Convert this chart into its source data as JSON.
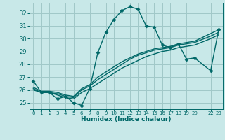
{
  "title": "",
  "xlabel": "Humidex (Indice chaleur)",
  "background_color": "#c8e8e8",
  "grid_color": "#a0c8c8",
  "line_color": "#006868",
  "ylim": [
    24.5,
    32.8
  ],
  "xlim": [
    -0.5,
    23.5
  ],
  "yticks": [
    25,
    26,
    27,
    28,
    29,
    30,
    31,
    32
  ],
  "xticks": [
    0,
    1,
    2,
    3,
    4,
    5,
    6,
    7,
    8,
    9,
    10,
    11,
    12,
    13,
    14,
    15,
    16,
    17,
    18,
    19,
    20,
    22,
    23
  ],
  "xtick_labels": [
    "0",
    "1",
    "2",
    "3",
    "4",
    "5",
    "6",
    "7",
    "8",
    "9",
    "10",
    "11",
    "12",
    "13",
    "14",
    "15",
    "16",
    "17",
    "18",
    "19",
    "20",
    "22",
    "23"
  ],
  "series": [
    {
      "x": [
        0,
        1,
        2,
        3,
        4,
        5,
        6,
        7,
        8,
        9,
        10,
        11,
        12,
        13,
        14,
        15,
        16,
        17,
        18,
        19,
        20,
        22,
        23
      ],
      "y": [
        26.7,
        25.8,
        25.8,
        25.3,
        25.5,
        25.0,
        24.8,
        26.1,
        28.9,
        30.5,
        31.5,
        32.2,
        32.5,
        32.3,
        31.0,
        30.9,
        29.5,
        29.3,
        29.6,
        28.4,
        28.5,
        27.5,
        30.7
      ],
      "style": "solid",
      "marker": "D",
      "markersize": 2.5,
      "linewidth": 1.0
    },
    {
      "x": [
        0,
        1,
        2,
        3,
        4,
        5,
        6,
        7,
        8,
        9,
        10,
        11,
        12,
        13,
        14,
        15,
        16,
        17,
        18,
        19,
        20,
        22,
        23
      ],
      "y": [
        26.0,
        25.8,
        25.8,
        25.6,
        25.4,
        25.3,
        25.8,
        26.1,
        26.5,
        26.9,
        27.3,
        27.7,
        28.0,
        28.3,
        28.6,
        28.8,
        29.0,
        29.1,
        29.3,
        29.4,
        29.5,
        30.0,
        30.3
      ],
      "style": "solid",
      "marker": null,
      "markersize": 0,
      "linewidth": 1.0
    },
    {
      "x": [
        0,
        1,
        2,
        3,
        4,
        5,
        6,
        7,
        8,
        9,
        10,
        11,
        12,
        13,
        14,
        15,
        16,
        17,
        18,
        19,
        20,
        22,
        23
      ],
      "y": [
        26.1,
        25.8,
        25.8,
        25.7,
        25.5,
        25.4,
        26.0,
        26.3,
        26.8,
        27.2,
        27.6,
        28.0,
        28.4,
        28.7,
        28.9,
        29.1,
        29.2,
        29.3,
        29.5,
        29.6,
        29.7,
        30.2,
        30.5
      ],
      "style": "solid",
      "marker": null,
      "markersize": 0,
      "linewidth": 1.0
    },
    {
      "x": [
        0,
        1,
        2,
        3,
        4,
        5,
        6,
        7,
        8,
        9,
        10,
        11,
        12,
        13,
        14,
        15,
        16,
        17,
        18,
        19,
        20,
        22,
        23
      ],
      "y": [
        26.2,
        25.9,
        25.9,
        25.8,
        25.6,
        25.5,
        26.1,
        26.4,
        27.0,
        27.4,
        27.8,
        28.2,
        28.5,
        28.8,
        29.0,
        29.2,
        29.3,
        29.4,
        29.6,
        29.7,
        29.8,
        30.4,
        30.7
      ],
      "style": "solid",
      "marker": null,
      "markersize": 0,
      "linewidth": 1.0
    }
  ]
}
